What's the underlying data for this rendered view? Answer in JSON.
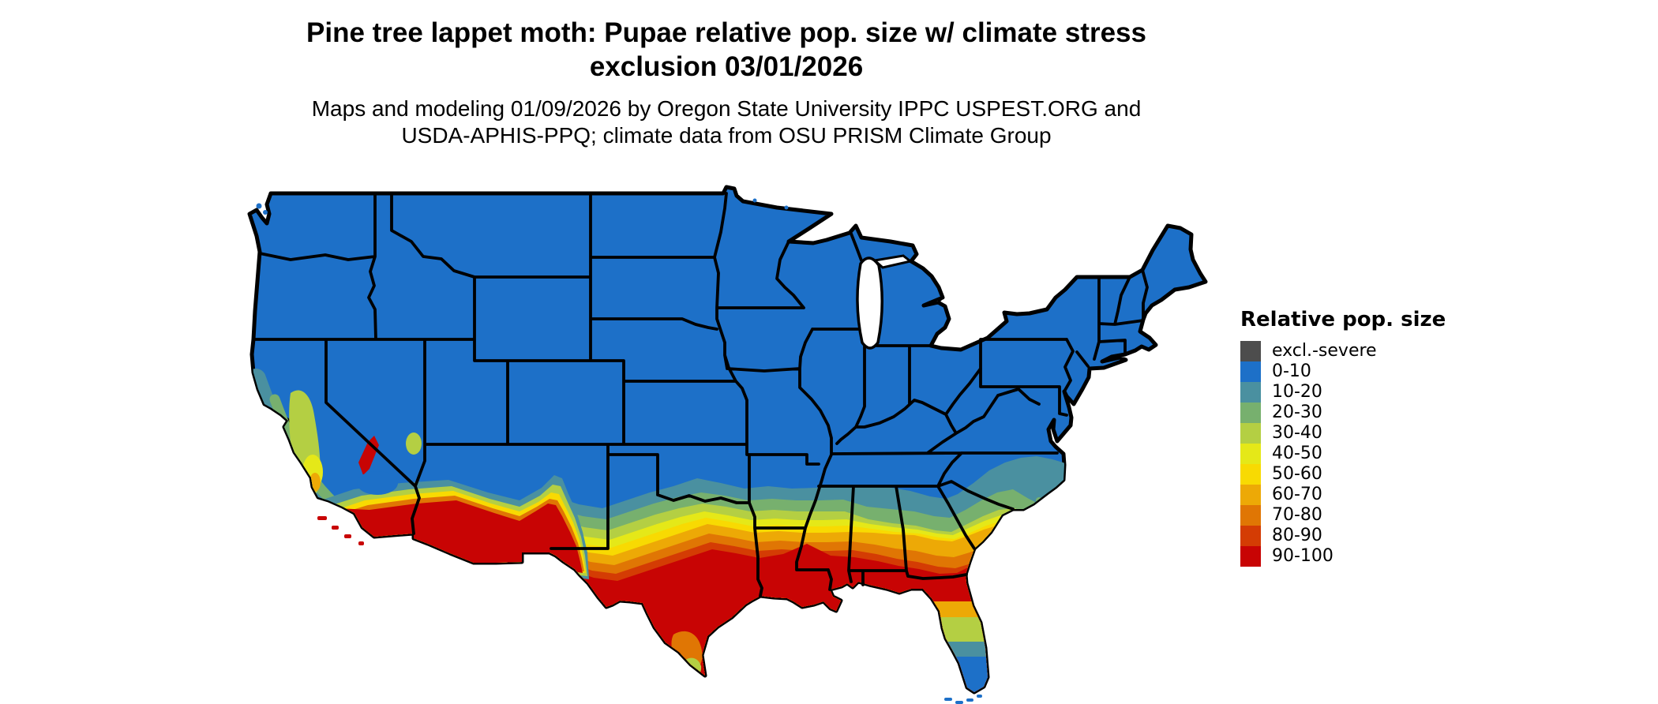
{
  "header": {
    "title_lines": [
      "Pine tree lappet moth: Pupae relative pop. size w/ climate stress",
      "exclusion 03/01/2026"
    ],
    "subtitle_lines": [
      "Maps and modeling 01/09/2026 by Oregon State University IPPC USPEST.ORG and",
      "USDA-APHIS-PPQ; climate data from OSU PRISM Climate Group"
    ]
  },
  "legend": {
    "title": "Relative pop. size",
    "items": [
      {
        "label": "excl.-severe",
        "color": "#4d4d4d"
      },
      {
        "label": "0-10",
        "color": "#1d70c8"
      },
      {
        "label": "10-20",
        "color": "#4a90a0"
      },
      {
        "label": "20-30",
        "color": "#77b06e"
      },
      {
        "label": "30-40",
        "color": "#b4cf43"
      },
      {
        "label": "40-50",
        "color": "#e5e818"
      },
      {
        "label": "50-60",
        "color": "#f8da02"
      },
      {
        "label": "60-70",
        "color": "#eda906"
      },
      {
        "label": "70-80",
        "color": "#e07604"
      },
      {
        "label": "80-90",
        "color": "#d43c04"
      },
      {
        "label": "90-100",
        "color": "#c80404"
      }
    ]
  },
  "palette": {
    "excl": "#4d4d4d",
    "v0_10": "#1d70c8",
    "v10_20": "#4a90a0",
    "v20_30": "#77b06e",
    "v30_40": "#b4cf43",
    "v40_50": "#e5e818",
    "v50_60": "#f8da02",
    "v60_70": "#eda906",
    "v70_80": "#e07604",
    "v80_90": "#d43c04",
    "v90_100": "#c80404",
    "border": "#000000",
    "water": "#ffffff"
  },
  "chart_data": {
    "type": "choropleth-map",
    "map_region": "Contiguous United States",
    "title": "Pine tree lappet moth: Pupae relative pop. size w/ climate stress exclusion 03/01/2026",
    "legend_title": "Relative pop. size",
    "classes": [
      "excl.-severe",
      "0-10",
      "10-20",
      "20-30",
      "30-40",
      "40-50",
      "50-60",
      "60-70",
      "70-80",
      "80-90",
      "90-100"
    ],
    "class_colors": [
      "#4d4d4d",
      "#1d70c8",
      "#4a90a0",
      "#77b06e",
      "#b4cf43",
      "#e5e818",
      "#f8da02",
      "#eda906",
      "#e07604",
      "#d43c04",
      "#c80404"
    ],
    "legend_position": "right",
    "depicted_pattern": [
      {
        "region": "Northern, central and eastern US (WA-ME down to TN/NC)",
        "value": "0-10"
      },
      {
        "region": "Coastal North Carolina / South Carolina",
        "value": "10-20 to 30-40"
      },
      {
        "region": "Southern Oklahoma, Arkansas, northern MS/AL/GA",
        "value": "10-20 to 30-40"
      },
      {
        "region": "Central Texas through central GA/SC",
        "value": "40-50 to 70-80 banded gradient"
      },
      {
        "region": "South Texas, Gulf Coast, Louisiana, southern MS/AL, south GA, north Florida",
        "value": "80-90 to 90-100"
      },
      {
        "region": "Southern tip of Texas",
        "value": "30-40 to 60-70"
      },
      {
        "region": "Central Florida",
        "value": "30-40 to 60-70"
      },
      {
        "region": "South Florida tip and Keys",
        "value": "0-10 to 10-20"
      },
      {
        "region": "California Central Valley",
        "value": "30-40"
      },
      {
        "region": "California coast ranges",
        "value": "10-20 to 20-30"
      },
      {
        "region": "Southern California and southern Arizona deserts",
        "value": "80-90 to 90-100"
      }
    ]
  }
}
